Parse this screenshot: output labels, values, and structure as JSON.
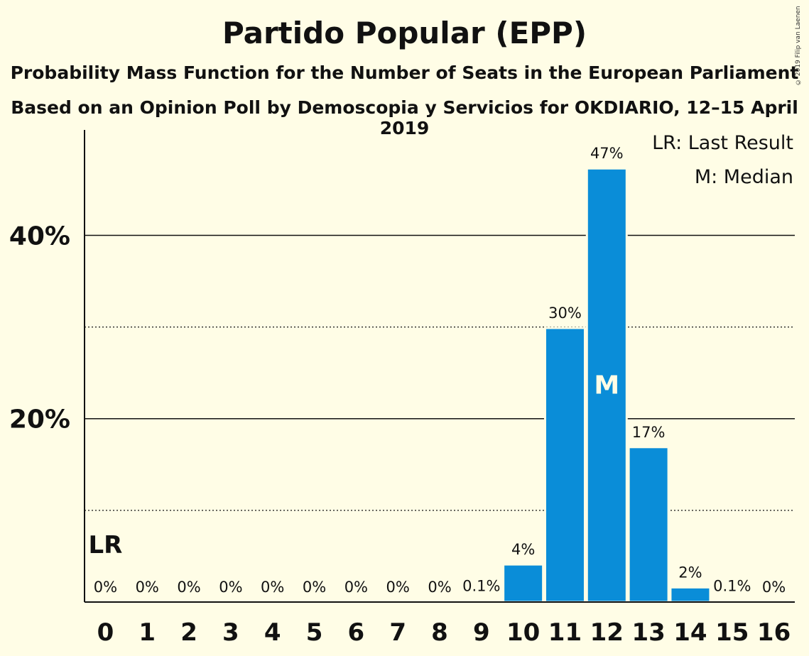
{
  "title": "Partido Popular (EPP)",
  "subtitle1": "Probability Mass Function for the Number of Seats in the European Parliament",
  "subtitle2": "Based on an Opinion Poll by Demoscopia y Servicios for OKDIARIO, 12–15 April 2019",
  "copyright": "© 2019 Filip van Laenen",
  "legend": {
    "lr": "LR: Last Result",
    "m": "M: Median"
  },
  "colors": {
    "bar": "#0A8DD8",
    "background": "#FFFDE6"
  },
  "chart_data": {
    "type": "bar",
    "categories": [
      "0",
      "1",
      "2",
      "3",
      "4",
      "5",
      "6",
      "7",
      "8",
      "9",
      "10",
      "11",
      "12",
      "13",
      "14",
      "15",
      "16"
    ],
    "values": [
      0,
      0,
      0,
      0,
      0,
      0,
      0,
      0,
      0,
      0.1,
      4.1,
      29.9,
      47.3,
      16.9,
      1.6,
      0.1,
      0
    ],
    "data_labels": [
      "0%",
      "0%",
      "0%",
      "0%",
      "0%",
      "0%",
      "0%",
      "0%",
      "0%",
      "0.1%",
      "4%",
      "30%",
      "47%",
      "17%",
      "2%",
      "0.1%",
      "0%"
    ],
    "ylim": [
      0,
      51.5
    ],
    "yticks": [
      {
        "value": 20,
        "label": "20%"
      },
      {
        "value": 40,
        "label": "40%"
      }
    ],
    "minor_gridlines": [
      10,
      30
    ],
    "last_result": {
      "category": "0",
      "label": "LR"
    },
    "median": {
      "category": "12",
      "label": "M"
    },
    "legend_position": "top-right"
  }
}
